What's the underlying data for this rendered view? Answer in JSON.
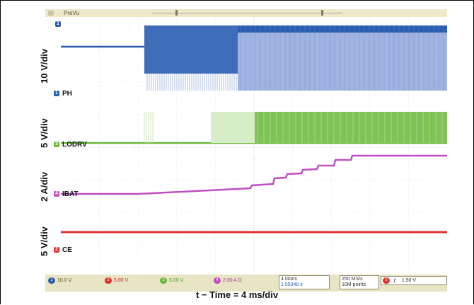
{
  "topbar": {
    "label": "PreVu"
  },
  "channels": [
    {
      "id": "1",
      "name": "PH",
      "scale": "10 V/div",
      "color": "#2a5db0",
      "setting": "10.0 V"
    },
    {
      "id": "3",
      "name": "LODRV",
      "scale": "5 V/div",
      "color": "#6ab73a",
      "setting": "5.00 V"
    },
    {
      "id": "4",
      "name": "IBAT",
      "scale": "2 A/div",
      "color": "#c04fc0",
      "setting": "2.00 A Ω"
    },
    {
      "id": "2",
      "name": "CE",
      "scale": "5 V/div",
      "color": "#e03030",
      "setting": "5.00 V"
    }
  ],
  "status": {
    "timebase": "4.00ms",
    "offset": "1.55348 s",
    "sample_rate": "250 MS/s",
    "record_length": "10M points",
    "trigger_channel": "2",
    "trigger_symbol": "ƒ",
    "trigger_level": "1.50 V"
  },
  "x_axis_label": "t − Time = 4 ms/div"
}
